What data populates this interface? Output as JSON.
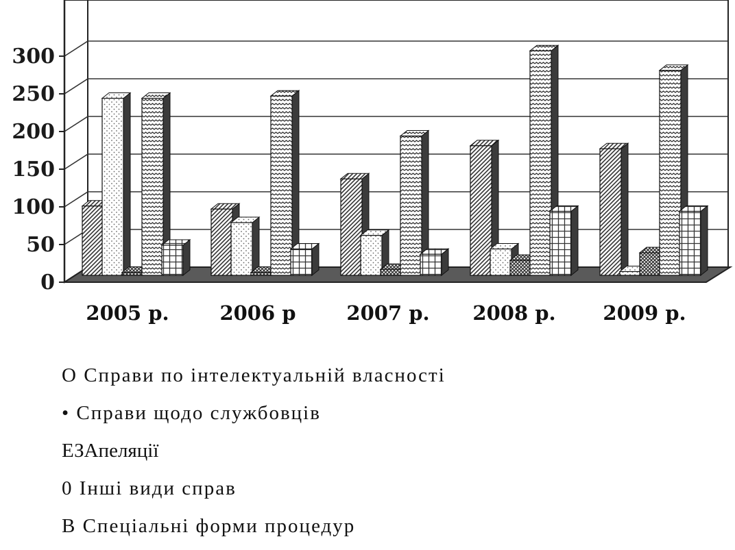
{
  "chart_data": {
    "type": "bar",
    "categories": [
      "2005 р.",
      "2006 р",
      "2007 р.",
      "2008 р.",
      "2009 р."
    ],
    "series": [
      {
        "name": "Справи по інтелектуальній власності",
        "marker": "О",
        "pattern": "diag",
        "values": [
          92,
          88,
          128,
          172,
          168
        ]
      },
      {
        "name": "Справи щодо службовців",
        "marker": "•",
        "pattern": "dots",
        "values": [
          235,
          70,
          53,
          35,
          5
        ]
      },
      {
        "name": "Апеляції",
        "marker": "ЕЗ",
        "pattern": "cross",
        "values": [
          4,
          4,
          8,
          20,
          30
        ]
      },
      {
        "name": "Інші види справ",
        "marker": "0",
        "pattern": "wave",
        "values": [
          235,
          238,
          185,
          298,
          272
        ]
      },
      {
        "name": "Спеціальні форми процедур",
        "marker": "В",
        "pattern": "grid",
        "values": [
          40,
          35,
          28,
          85,
          85
        ]
      }
    ],
    "yticks": [
      "0",
      "50",
      "100",
      "150",
      "200",
      "250",
      "300"
    ],
    "ylim": [
      0,
      300
    ],
    "grid": true,
    "legend_placement": "bottom"
  }
}
